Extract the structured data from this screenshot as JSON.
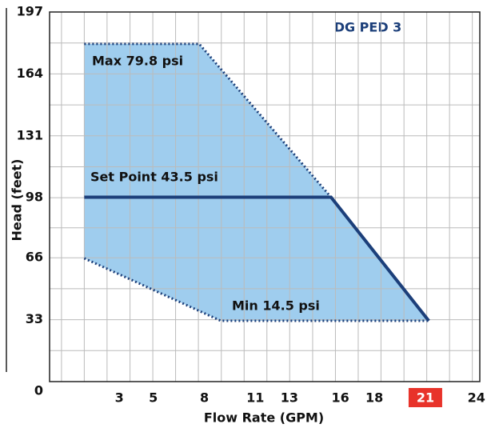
{
  "chart_data": {
    "type": "line",
    "title": "DG PED 3",
    "xlabel": "Flow Rate (GPM)",
    "ylabel": "Head (feet)",
    "xlim": [
      -1.1,
      24.2
    ],
    "ylim": [
      0,
      197
    ],
    "xticks": [
      3,
      5,
      8,
      11,
      13,
      16,
      18,
      21,
      24
    ],
    "yticks": [
      0,
      33,
      66,
      98,
      131,
      164,
      197
    ],
    "highlight_xtick": 21,
    "highlight_color": "#e8332a",
    "grid": true,
    "xgrid": [
      -0.4,
      0.94,
      2.28,
      3.63,
      4.97,
      6.31,
      7.65,
      9.0,
      10.34,
      11.68,
      13.02,
      14.37,
      15.71,
      17.05,
      18.39,
      19.74,
      21.08,
      22.42,
      23.76
    ],
    "ygrid": [
      16.5,
      33,
      49.5,
      66,
      82,
      98,
      114.5,
      131,
      147.5,
      164,
      180.5
    ],
    "region": {
      "color": "#9fcdee",
      "x": [
        0.94,
        7.7,
        15.45,
        21.2,
        8.97,
        0.94
      ],
      "y": [
        180,
        180,
        98.3,
        32.4,
        32.4,
        65.7
      ]
    },
    "series": [
      {
        "name": "Max 79.8 psi",
        "color": "#1c3f7a",
        "style": "dotted",
        "x": [
          0.94,
          7.7,
          15.45
        ],
        "values": [
          180,
          180,
          98.3
        ]
      },
      {
        "name": "Set Point 43.5 psi",
        "color": "#1c3f7a",
        "style": "solid",
        "x": [
          0.94,
          15.45,
          21.2
        ],
        "values": [
          98.3,
          98.3,
          32.4
        ]
      },
      {
        "name": "Min 14.5 psi",
        "color": "#1c3f7a",
        "style": "dotted",
        "x": [
          0.94,
          8.97,
          21.2
        ],
        "values": [
          65.7,
          32.4,
          32.4
        ]
      }
    ]
  }
}
